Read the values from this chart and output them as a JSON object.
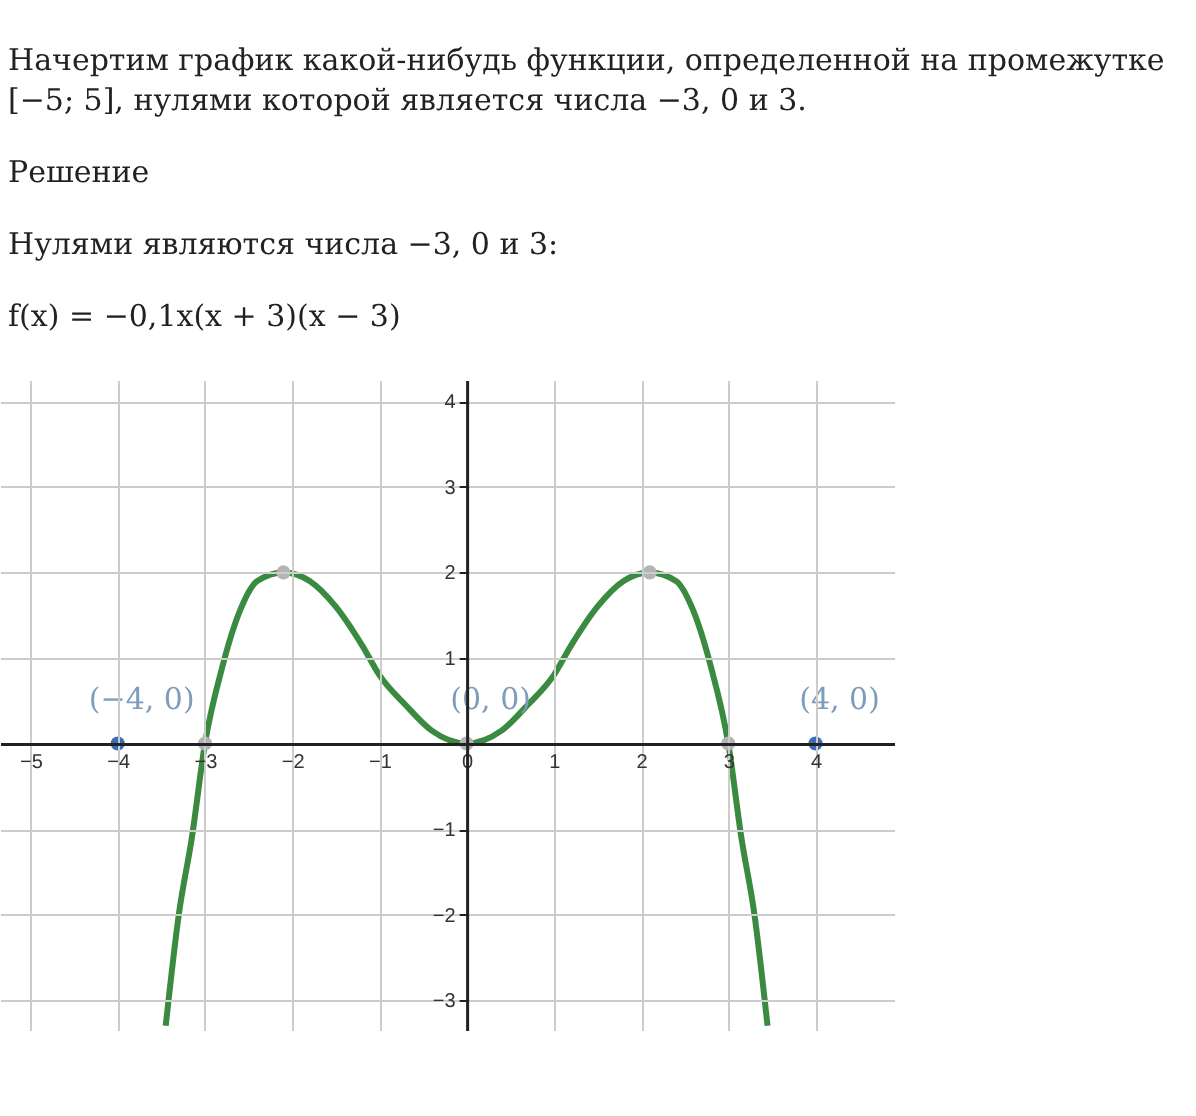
{
  "chart_data": {
    "type": "line",
    "title": "Начертим график какой-нибудь функции, определенной на промежутке [−5; 5], нулями которой является числа −3, 0 и 3.",
    "annotations": [
      "Решение",
      "Нулями являются числа −3, 0 и 3:",
      "f(x) = −0,1x(x + 3)(x − 3)",
      {
        "text": "(−4, 0)",
        "x": -4,
        "y": 0
      },
      {
        "text": "(0, 0)",
        "x": 0,
        "y": 0
      },
      {
        "text": "(4, 0)",
        "x": 4,
        "y": 0
      }
    ],
    "xlim": [
      -5.35,
      4.9
    ],
    "ylim": [
      -3.35,
      4.25
    ],
    "xticks": [
      -5,
      -4,
      -3,
      -2,
      -1,
      0,
      1,
      2,
      3,
      4
    ],
    "yticks": [
      -3,
      -2,
      -1,
      {
        "value": 0,
        "label": null
      },
      1,
      2,
      3,
      4
    ],
    "grid": true,
    "series": [
      {
        "color": "#3a8a3f",
        "marker": "none",
        "x": [
          -3.45,
          -3.3,
          -3.15,
          -3,
          -2.8,
          -2.6,
          -2.4,
          -2.1,
          -1.8,
          -1.5,
          -1.2,
          -1,
          -0.7,
          -0.4,
          0,
          0.4,
          0.7,
          1,
          1.2,
          1.5,
          1.8,
          2.1,
          2.4,
          2.6,
          2.8,
          3,
          3.15,
          3.3,
          3.45
        ],
        "values": [
          -3.3,
          -2,
          -1.1,
          0,
          0.9,
          1.55,
          1.9,
          2,
          1.9,
          1.6,
          1.15,
          0.8,
          0.45,
          0.15,
          0,
          0.15,
          0.45,
          0.8,
          1.15,
          1.6,
          1.9,
          2,
          1.9,
          1.55,
          0.9,
          0,
          -1.1,
          -2,
          -3.3
        ]
      },
      {
        "type": "scatter",
        "color": "#b4b4b4",
        "marker": "circle",
        "x": [
          -3,
          -2.1,
          0,
          2.1,
          3
        ],
        "values": [
          0,
          2,
          0,
          2,
          0
        ]
      },
      {
        "type": "scatter",
        "color": "#3a6fb5",
        "marker": "circle",
        "x": [
          -4,
          4
        ],
        "values": [
          0,
          0
        ]
      }
    ]
  }
}
